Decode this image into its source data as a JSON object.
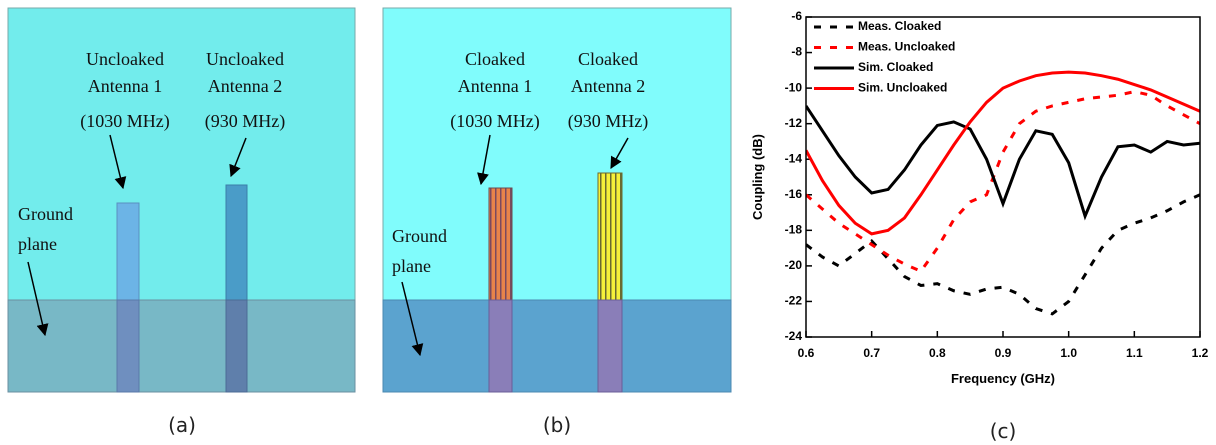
{
  "panels": [
    {
      "caption": "(a)",
      "antennas": [
        [
          "Uncloaked",
          "Antenna 1",
          "(1030 MHz)"
        ],
        [
          "Uncloaked",
          "Antenna 2",
          "(930 MHz)"
        ]
      ],
      "ground": [
        "Ground",
        "plane"
      ]
    },
    {
      "caption": "(b)",
      "antennas": [
        [
          "Cloaked",
          "Antenna 1",
          "(1030 MHz)"
        ],
        [
          "Cloaked",
          "Antenna 2",
          "(930 MHz)"
        ]
      ],
      "ground": [
        "Ground",
        "plane"
      ]
    }
  ],
  "chart_data": {
    "type": "line",
    "caption": "(c)",
    "xlabel": "Frequency (GHz)",
    "ylabel": "Coupling (dB)",
    "x": [
      0.6,
      0.625,
      0.65,
      0.675,
      0.7,
      0.725,
      0.75,
      0.775,
      0.8,
      0.825,
      0.85,
      0.875,
      0.9,
      0.925,
      0.95,
      0.975,
      1.0,
      1.025,
      1.05,
      1.075,
      1.1,
      1.125,
      1.15,
      1.175,
      1.2
    ],
    "xlim": [
      0.6,
      1.2
    ],
    "ylim": [
      -24,
      -6
    ],
    "xticks": [
      0.6,
      0.7,
      0.8,
      0.9,
      {
        "value": 1,
        "label": "1.0"
      },
      1.1,
      1.2
    ],
    "yticks": [
      -24,
      -22,
      -20,
      -18,
      -16,
      -14,
      -12,
      -10,
      -8,
      -6
    ],
    "legend": "upper left",
    "series": [
      {
        "name": "Meas. Cloaked",
        "color": "#000000",
        "style": "dashed",
        "values": [
          -18.8,
          -19.5,
          -20.0,
          -19.3,
          -18.6,
          -19.6,
          -20.6,
          -21.1,
          -21.0,
          -21.4,
          -21.6,
          -21.3,
          -21.2,
          -21.6,
          -22.4,
          -22.7,
          -22.0,
          -20.5,
          -19.0,
          -18.0,
          -17.6,
          -17.3,
          -16.9,
          -16.4,
          -16.0
        ]
      },
      {
        "name": "Meas. Uncloaked",
        "color": "#ff0000",
        "style": "dashed",
        "values": [
          -16.0,
          -16.8,
          -17.6,
          -18.2,
          -18.8,
          -19.4,
          -19.9,
          -20.3,
          -19.0,
          -17.4,
          -16.4,
          -16.0,
          -13.6,
          -12.0,
          -11.3,
          -11.0,
          -10.8,
          -10.6,
          -10.5,
          -10.4,
          -10.2,
          -10.4,
          -11.0,
          -11.5,
          -12.0
        ]
      },
      {
        "name": "Sim. Cloaked",
        "color": "#000000",
        "style": "solid",
        "values": [
          -11.0,
          -12.4,
          -13.8,
          -15.0,
          -15.9,
          -15.7,
          -14.6,
          -13.2,
          -12.1,
          -11.9,
          -12.3,
          -14.0,
          -16.5,
          -14.0,
          -12.4,
          -12.6,
          -14.2,
          -17.2,
          -15.0,
          -13.3,
          -13.2,
          -13.6,
          -13.0,
          -13.2,
          -13.1
        ]
      },
      {
        "name": "Sim. Uncloaked",
        "color": "#ff0000",
        "style": "solid",
        "values": [
          -13.5,
          -15.2,
          -16.6,
          -17.6,
          -18.2,
          -18.0,
          -17.3,
          -16.0,
          -14.6,
          -13.2,
          -11.9,
          -10.8,
          -10.0,
          -9.6,
          -9.3,
          -9.15,
          -9.1,
          -9.15,
          -9.3,
          -9.5,
          -9.8,
          -10.1,
          -10.5,
          -10.9,
          -11.3
        ]
      }
    ]
  }
}
